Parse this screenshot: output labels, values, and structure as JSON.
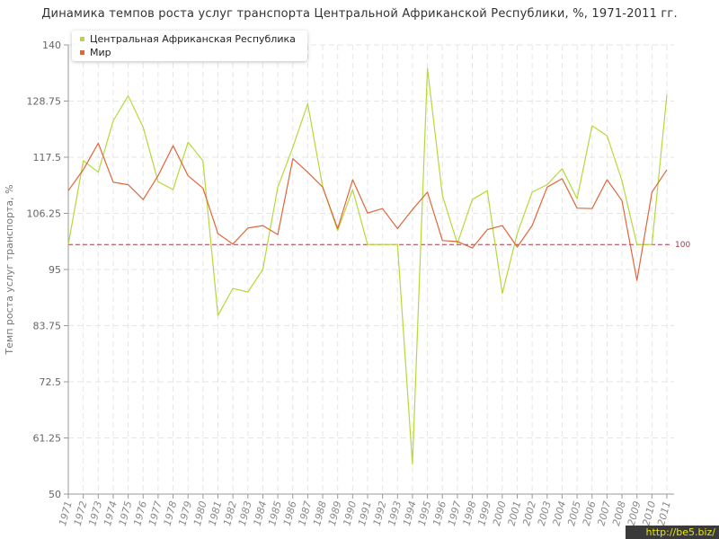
{
  "page": {
    "title": "Динамика темпов роста услуг транспорта Центральной Африканской Республики, %, 1971-2011 гг.",
    "watermark": "http://be5.biz/"
  },
  "colors": {
    "car": "#b5d93a",
    "world": "#e0663a",
    "reference": "#a33a4a",
    "grid": "#e6e6e6",
    "axis": "#999999"
  },
  "chart_data": {
    "type": "line",
    "title": "Динамика темпов роста услуг транспорта Центральной Африканской Республики, %, 1971-2011 гг.",
    "xlabel": "",
    "ylabel": "Темп роста услуг транспорта, %",
    "ylim": [
      50,
      140
    ],
    "yticks": [
      "50",
      "61.25",
      "72.5",
      "83.75",
      "95",
      "106.25",
      "117.5",
      "128.75",
      "140"
    ],
    "grid": true,
    "legend_position": "top-left",
    "reference_line": {
      "value": 100,
      "label": "100"
    },
    "categories": [
      "1971",
      "1972",
      "1973",
      "1974",
      "1975",
      "1976",
      "1977",
      "1978",
      "1979",
      "1980",
      "1981",
      "1982",
      "1983",
      "1984",
      "1985",
      "1986",
      "1987",
      "1988",
      "1989",
      "1990",
      "1991",
      "1992",
      "1993",
      "1994",
      "1995",
      "1996",
      "1997",
      "1998",
      "1999",
      "2000",
      "2001",
      "2002",
      "2003",
      "2004",
      "2005",
      "2006",
      "2007",
      "2008",
      "2009",
      "2010",
      "2011"
    ],
    "series": [
      {
        "name": "Центральная Африканская Республика",
        "color": "#b5d93a",
        "values": [
          100,
          116.8,
          114.5,
          124.8,
          129.8,
          123.5,
          112.6,
          111,
          120.5,
          116.8,
          85.8,
          91.2,
          90.5,
          95,
          111.5,
          119.5,
          128.2,
          111.5,
          102.8,
          111,
          100,
          100,
          100,
          56,
          135.3,
          109.8,
          100.2,
          109,
          110.8,
          90.2,
          102.2,
          110.5,
          112,
          115.2,
          109.2,
          123.8,
          121.8,
          112.8,
          100,
          100,
          130
        ]
      },
      {
        "name": "Мир",
        "color": "#e0663a",
        "values": [
          110.8,
          115,
          120.3,
          112.5,
          112,
          109,
          113.8,
          119.8,
          113.8,
          111.3,
          102.2,
          100.1,
          103.3,
          103.8,
          102,
          117.2,
          114.5,
          111.5,
          103.2,
          113,
          106.3,
          107.2,
          103.2,
          107,
          110.5,
          100.8,
          100.6,
          99.3,
          103,
          103.8,
          99.5,
          103.8,
          111.5,
          113.2,
          107.3,
          107.2,
          113,
          108.8,
          92.8,
          110.5,
          115
        ]
      }
    ]
  }
}
